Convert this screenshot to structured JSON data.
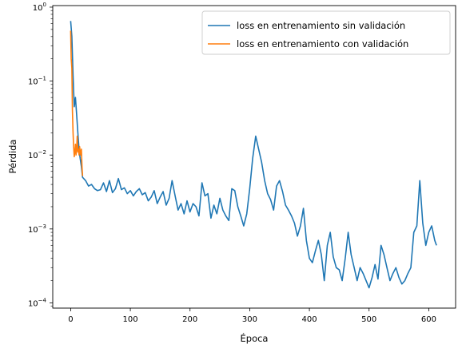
{
  "chart_data": {
    "type": "line",
    "title": "",
    "xlabel": "Época",
    "ylabel": "Pérdida",
    "yscale": "log",
    "xlim": [
      -30,
      645
    ],
    "ylim": [
      8.5e-05,
      1.05
    ],
    "xticks": [
      0,
      100,
      200,
      300,
      400,
      500,
      600
    ],
    "xtick_labels": [
      "0",
      "100",
      "200",
      "300",
      "400",
      "500",
      "600"
    ],
    "yticks": [
      0.0001,
      0.001,
      0.01,
      0.1,
      1
    ],
    "ytick_labels": [
      {
        "base": "10",
        "exp": "−4"
      },
      {
        "base": "10",
        "exp": "−3"
      },
      {
        "base": "10",
        "exp": "−2"
      },
      {
        "base": "10",
        "exp": "−1"
      },
      {
        "base": "10",
        "exp": "0"
      }
    ],
    "grid": false,
    "legend_position": "top-right",
    "series": [
      {
        "name": "loss en entrenamiento sin validación",
        "color": "#1f77b4",
        "x": [
          0,
          2,
          4,
          6,
          8,
          10,
          12,
          14,
          16,
          18,
          20,
          25,
          30,
          35,
          40,
          45,
          50,
          55,
          60,
          65,
          70,
          75,
          80,
          85,
          90,
          95,
          100,
          105,
          110,
          115,
          120,
          125,
          130,
          135,
          140,
          145,
          150,
          155,
          160,
          165,
          170,
          175,
          180,
          185,
          190,
          195,
          200,
          205,
          210,
          215,
          220,
          225,
          230,
          235,
          240,
          245,
          250,
          255,
          260,
          265,
          270,
          275,
          280,
          285,
          290,
          295,
          300,
          305,
          310,
          315,
          320,
          325,
          330,
          335,
          340,
          345,
          350,
          355,
          360,
          365,
          370,
          375,
          380,
          385,
          390,
          395,
          400,
          405,
          410,
          415,
          420,
          425,
          430,
          435,
          440,
          445,
          450,
          455,
          460,
          465,
          470,
          475,
          480,
          485,
          490,
          495,
          500,
          505,
          510,
          515,
          520,
          525,
          530,
          535,
          540,
          545,
          550,
          555,
          560,
          565,
          570,
          575,
          580,
          585,
          590,
          595,
          600,
          605,
          610,
          613
        ],
        "y": [
          0.65,
          0.4,
          0.12,
          0.045,
          0.06,
          0.035,
          0.02,
          0.012,
          0.009,
          0.007,
          0.005,
          0.0045,
          0.0038,
          0.004,
          0.0035,
          0.0033,
          0.0034,
          0.0042,
          0.0032,
          0.0045,
          0.0031,
          0.0035,
          0.0048,
          0.0034,
          0.0036,
          0.003,
          0.0033,
          0.0028,
          0.0032,
          0.0035,
          0.0029,
          0.0031,
          0.0024,
          0.0027,
          0.0033,
          0.0022,
          0.0027,
          0.0032,
          0.0021,
          0.0026,
          0.0045,
          0.0028,
          0.0018,
          0.0022,
          0.0016,
          0.0024,
          0.0017,
          0.0022,
          0.002,
          0.0015,
          0.0042,
          0.0028,
          0.003,
          0.0014,
          0.0021,
          0.0016,
          0.0026,
          0.0018,
          0.0015,
          0.0013,
          0.0035,
          0.0033,
          0.002,
          0.0015,
          0.0011,
          0.0016,
          0.0035,
          0.009,
          0.018,
          0.012,
          0.008,
          0.0045,
          0.003,
          0.0025,
          0.0018,
          0.0038,
          0.0045,
          0.0032,
          0.0021,
          0.0018,
          0.0015,
          0.0012,
          0.0008,
          0.0011,
          0.0019,
          0.0007,
          0.0004,
          0.00035,
          0.0005,
          0.0007,
          0.00045,
          0.0002,
          0.0006,
          0.0009,
          0.00042,
          0.0003,
          0.00028,
          0.0002,
          0.0004,
          0.0009,
          0.00045,
          0.0003,
          0.0002,
          0.0003,
          0.00025,
          0.0002,
          0.00016,
          0.00022,
          0.00033,
          0.00021,
          0.0006,
          0.00045,
          0.0003,
          0.0002,
          0.00025,
          0.0003,
          0.00022,
          0.00018,
          0.0002,
          0.00025,
          0.0003,
          0.0009,
          0.0011,
          0.0045,
          0.0012,
          0.0006,
          0.0009,
          0.0011,
          0.0007,
          0.0006
        ]
      },
      {
        "name": "loss en entrenamiento con validación",
        "color": "#ff7f0e",
        "x": [
          0,
          1,
          2,
          3,
          4,
          5,
          6,
          7,
          8,
          9,
          10,
          11,
          12,
          13,
          14,
          15,
          16,
          17,
          18,
          19,
          20
        ],
        "y": [
          0.48,
          0.2,
          0.15,
          0.04,
          0.02,
          0.013,
          0.0095,
          0.011,
          0.014,
          0.01,
          0.012,
          0.018,
          0.011,
          0.012,
          0.01,
          0.013,
          0.011,
          0.01,
          0.012,
          0.007,
          0.0052
        ]
      }
    ]
  }
}
